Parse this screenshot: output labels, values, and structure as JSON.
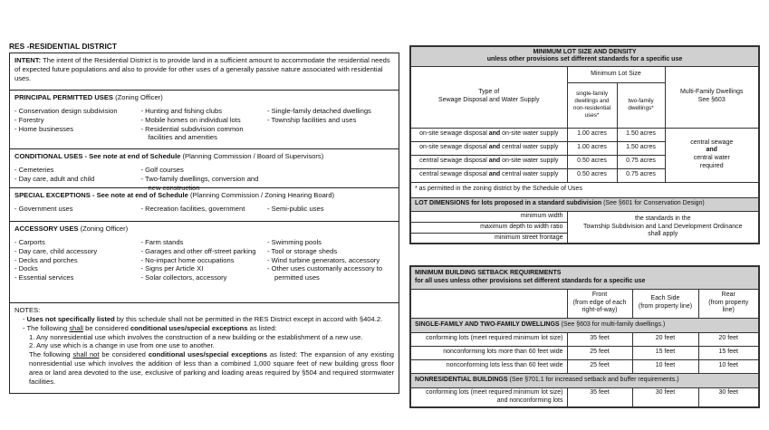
{
  "left": {
    "title": "RES -RESIDENTIAL DISTRICT",
    "intent": {
      "label": "INTENT:",
      "text": " The intent of the Residential District is to provide land in a sufficient amount to accommodate the residential needs of expected future populations and also to provide for other uses of a generally passive nature associated with residential uses."
    },
    "permitted": {
      "heading": "PRINCIPAL PERMITTED USES",
      "note": " (Zoning Officer)",
      "cols": [
        [
          "- Conservation design subdivision",
          "- Forestry",
          "- Home businesses"
        ],
        [
          "- Hunting and fishing clubs",
          "- Mobile homes on individual lots",
          "- Residential subdivision common facilities and amenities"
        ],
        [
          "- Single-family detached dwellings",
          "- Township facilities and uses"
        ]
      ]
    },
    "conditional": {
      "heading": "CONDITIONAL USES - See note at end of Schedule",
      "note": "  (Planning Commission / Board of Supervisors)",
      "cols": [
        [
          "- Cemeteries",
          "- Day care, adult and child"
        ],
        [
          "- Golf courses",
          "- Two-family dwellings, conversion and new construction"
        ]
      ]
    },
    "special": {
      "heading": "SPECIAL EXCEPTIONS - See note at end of Schedule",
      "note": "  (Planning Commission / Zoning Hearing Board)",
      "cols": [
        [
          "- Government uses"
        ],
        [
          "- Recreation facilities, government"
        ],
        [
          "- Semi-public uses"
        ]
      ]
    },
    "accessory": {
      "heading": "ACCESSORY USES",
      "note": " (Zoning Officer)",
      "cols": [
        [
          "- Carports",
          "- Day care, child accessory",
          "- Decks and porches",
          "- Docks",
          "- Essential services"
        ],
        [
          "- Farm stands",
          "- Garages and other off-street parking",
          "- No-impact home occupations",
          "- Signs per Article XI",
          "- Solar collectors, accessory"
        ],
        [
          "- Swimming pools",
          "- Tool or storage sheds",
          "- Wind turbine generators, accessory",
          "- Other uses customarily accessory to permitted uses"
        ]
      ]
    },
    "notes": {
      "heading": "NOTES:",
      "n1_bold": "Uses not specifically listed",
      "n1_rest": " by this schedule shall not be permitted in the RES District except in accord with §404.2.",
      "n2_a": "The following ",
      "n2_u": "shall",
      "n2_b": " be considered ",
      "n2_bold": "conditional uses/special exceptions",
      "n2_c": " as listed:",
      "item1": "1.  Any nonresidential use which involves the construction of a new building or the establishment of a new use.",
      "item2": "2.  Any use which is a change in use from one use to another.",
      "n3_a": "The following ",
      "n3_u": "shall not",
      "n3_b": " be considered ",
      "n3_bold": "conditional uses/special exceptions",
      "n3_c": " as listed: The expansion of any existing nonresidential use which involves the addition of less than a combined 1,000 square feet of new building gross floor area or land area devoted to the use, exclusive of parking and loading areas required by §504 and required stormwater facilities."
    }
  },
  "lot_table": {
    "title": "MINIMUM LOT SIZE AND DENSITY",
    "subtitle": "unless other provisions set different standards for a specific use",
    "col_type": "Type of\nSewage Disposal and Water Supply",
    "col_min": "Minimum Lot Size",
    "col_single": "single-family dwellings and non-residential uses*",
    "col_two": "two-family dwellings*",
    "col_multi": "Multi-Family Dwellings\nSee §603",
    "rows": [
      {
        "a": "on-site sewage disposal ",
        "and": "and",
        "b": " on-site water supply",
        "single": "1.00 acres",
        "two": "1.50 acres"
      },
      {
        "a": "on-site sewage disposal ",
        "and": "and",
        "b": " central water supply",
        "single": "1.00 acres",
        "two": "1.50 acres"
      },
      {
        "a": "central sewage disposal  ",
        "and": "and",
        "b": " on-site water supply",
        "single": "0.50 acres",
        "two": "0.75 acres"
      },
      {
        "a": "central sewage disposal  ",
        "and": "and",
        "b": " central water supply",
        "single": "0.50 acres",
        "two": "0.75 acres"
      }
    ],
    "multi_a": "central sewage",
    "multi_and": "and",
    "multi_b": "central water\nrequired",
    "footnote": "* as permitted in the zoning district by the Schedule of Uses",
    "dims_heading": "LOT DIMENSIONS for lots proposed in a standard subdivision",
    "dims_note": "  (See §601 for Conservation Design)",
    "dims_rows": [
      "minimum width",
      "maximum depth to width ratio",
      "minimum street frontage"
    ],
    "dims_value": "the standards in the\nTownship Subdivision and Land Development Ordinance\nshall apply"
  },
  "setback_table": {
    "title": "MINIMUM BUILDING SETBACK REQUIREMENTS",
    "subtitle": "for all uses unless other provisions set different standards for a specific use",
    "col_front": "Front\n(from edge of each\nright-of-way)",
    "col_side": "Each Side\n(from property line)",
    "col_rear": "Rear\n(from property line)",
    "sec1_heading": "SINGLE-FAMILY AND TWO-FAMILY DWELLINGS",
    "sec1_note": "  (See §603 for multi-family dwellings.)",
    "sec1_rows": [
      {
        "label": "conforming lots (meet required minimum lot size)",
        "front": "35 feet",
        "side": "20 feet",
        "rear": "20 feet"
      },
      {
        "label": "nonconforming lots more than 60 feet wide",
        "front": "25 feet",
        "side": "15 feet",
        "rear": "15 feet"
      },
      {
        "label": "nonconforming lots less than 60 feet wide",
        "front": "25 feet",
        "side": "10 feet",
        "rear": "10 feet"
      }
    ],
    "sec2_heading": "NONRESIDENTIAL BUILDINGS",
    "sec2_note": "  (See §701.1 for increased setback and buffer requirements.)",
    "sec2_rows": [
      {
        "label": "conforming lots (meet required minimum lot size)\nand nonconforming lots",
        "front": "35 feet",
        "side": "30 feet",
        "rear": "30 feet"
      }
    ]
  }
}
